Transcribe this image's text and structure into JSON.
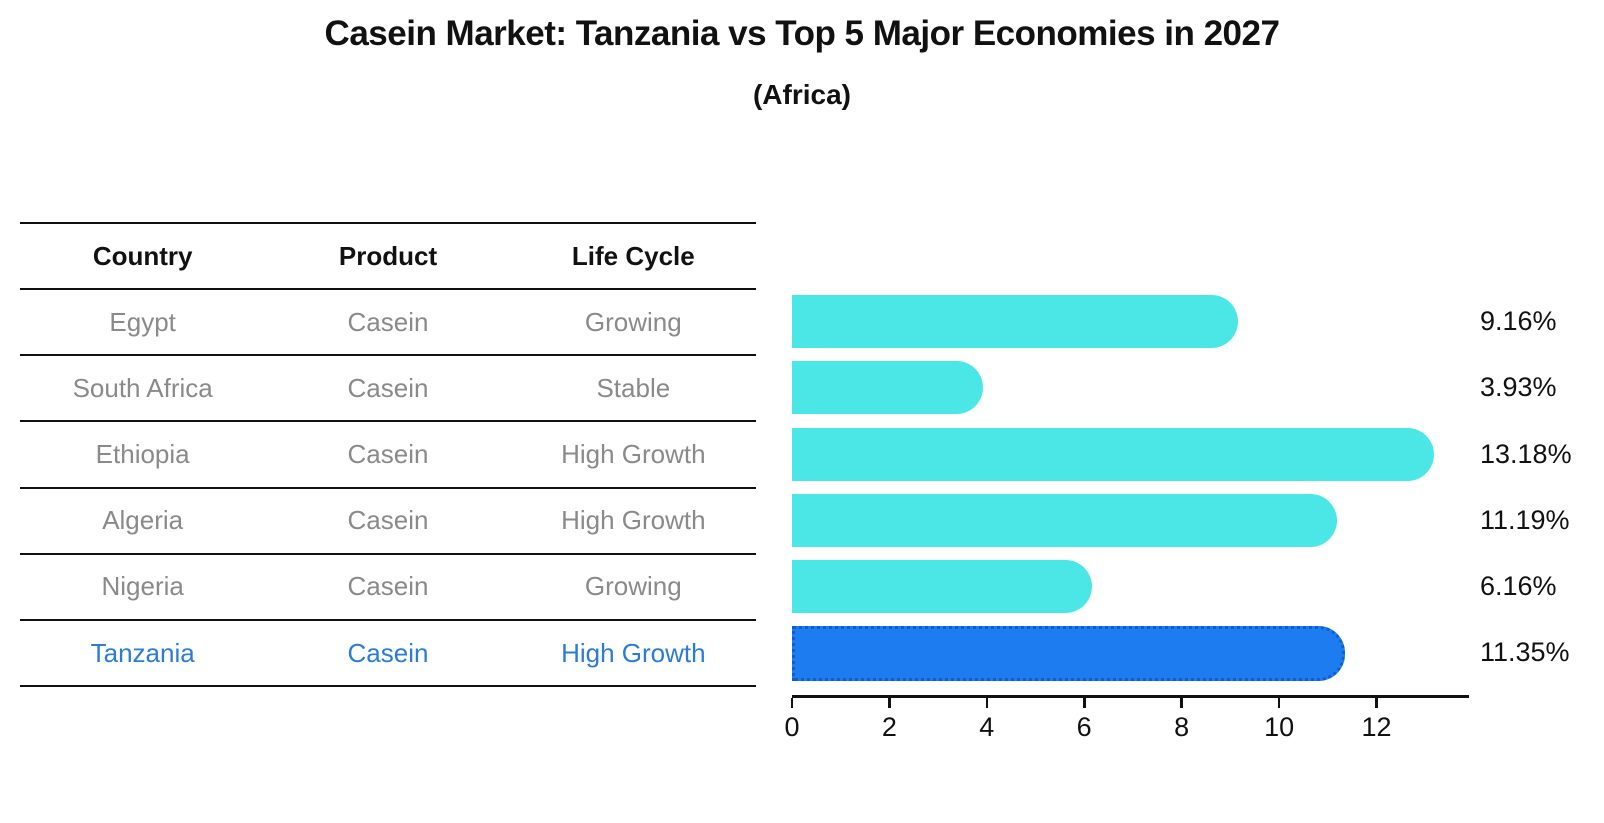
{
  "title": "Casein Market: Tanzania vs Top 5 Major Economies in 2027",
  "subtitle": "(Africa)",
  "colors": {
    "bar": "#4BE7E7",
    "highlight_bar": "#1D7DF0",
    "highlight_border": "#0E5FCE",
    "highlight_text": "#2B7CD6",
    "row_text": "#8A8A8A",
    "header_text": "#111111",
    "axis": "#111111"
  },
  "table": {
    "headers": [
      "Country",
      "Product",
      "Life Cycle"
    ],
    "rows": [
      {
        "country": "Egypt",
        "product": "Casein",
        "life_cycle": "Growing"
      },
      {
        "country": "South Africa",
        "product": "Casein",
        "life_cycle": "Stable"
      },
      {
        "country": "Ethiopia",
        "product": "Casein",
        "life_cycle": "High Growth"
      },
      {
        "country": "Algeria",
        "product": "Casein",
        "life_cycle": "High Growth"
      },
      {
        "country": "Nigeria",
        "product": "Casein",
        "life_cycle": "Growing"
      },
      {
        "country": "Tanzania",
        "product": "Casein",
        "life_cycle": "High Growth"
      }
    ]
  },
  "chart_data": {
    "type": "bar",
    "orientation": "horizontal",
    "title": "Casein Market: Tanzania vs Top 5 Major Economies in 2027 (Africa)",
    "categories": [
      "Egypt",
      "South Africa",
      "Ethiopia",
      "Algeria",
      "Nigeria",
      "Tanzania"
    ],
    "values": [
      9.16,
      3.93,
      13.18,
      11.19,
      6.16,
      11.35
    ],
    "value_labels": [
      "9.16%",
      "3.93%",
      "13.18%",
      "11.19%",
      "6.16%",
      "11.35%"
    ],
    "highlight_index": 5,
    "highlight_category": "Tanzania",
    "xticks": [
      0,
      2,
      4,
      6,
      8,
      10,
      12
    ],
    "xlim": [
      0,
      13.9
    ],
    "xlabel": "",
    "ylabel": "",
    "legend": false,
    "grid": false
  }
}
